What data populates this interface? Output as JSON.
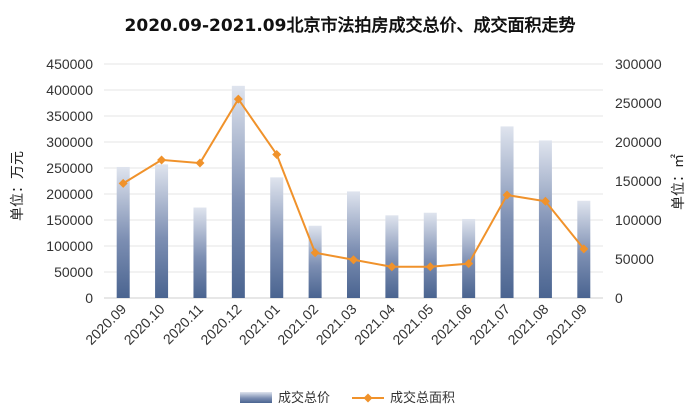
{
  "chart_data": {
    "type": "bar",
    "title": "2020.09-2021.09北京市法拍房成交总价、成交面积走势",
    "categories": [
      "2020.09",
      "2020.10",
      "2020.11",
      "2020.12",
      "2021.01",
      "2021.02",
      "2021.03",
      "2021.04",
      "2021.05",
      "2021.06",
      "2021.07",
      "2021.08",
      "2021.09"
    ],
    "series": [
      {
        "name": "成交总价",
        "type": "bar",
        "axis": "left",
        "color": "#4a6490",
        "values": [
          252000,
          257000,
          174000,
          408000,
          232000,
          139000,
          205000,
          159000,
          164000,
          152000,
          330000,
          303000,
          187000
        ]
      },
      {
        "name": "成交总面积",
        "type": "line",
        "axis": "right",
        "color": "#f0922b",
        "values": [
          147000,
          177000,
          173000,
          255000,
          184000,
          58000,
          49000,
          40000,
          40000,
          44000,
          132000,
          124000,
          63000
        ]
      }
    ],
    "ylabel": "单位：万元",
    "y2label": "单位：㎡",
    "ylim": [
      0,
      450000
    ],
    "yticks": [
      0,
      50000,
      100000,
      150000,
      200000,
      250000,
      300000,
      350000,
      400000,
      450000
    ],
    "y2lim": [
      0,
      300000
    ],
    "y2ticks": [
      0,
      50000,
      100000,
      150000,
      200000,
      250000,
      300000
    ],
    "grid": true,
    "legend": "bottom"
  }
}
